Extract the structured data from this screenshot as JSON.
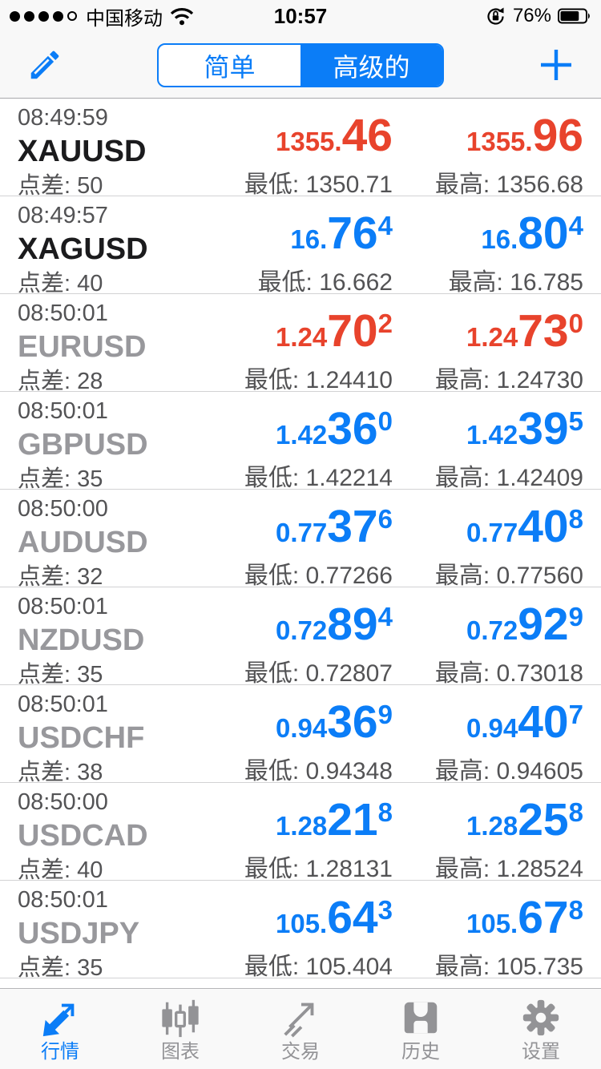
{
  "status_bar": {
    "carrier": "中国移动",
    "time": "10:57",
    "battery_percent": "76%",
    "battery_level": 76,
    "signal_dots_filled": 4,
    "signal_dots_total": 5,
    "icons": [
      "signal-dots-icon",
      "wifi-icon",
      "orientation-lock-icon",
      "battery-icon"
    ]
  },
  "header": {
    "edit_icon": "pencil-icon",
    "add_icon": "plus-icon",
    "segments": {
      "items": [
        {
          "label": "简单",
          "active": false
        },
        {
          "label": "高级的",
          "active": true
        }
      ]
    }
  },
  "quotes": [
    {
      "time": "08:49:59",
      "symbol": "XAUUSD",
      "symbol_muted": false,
      "trend": "down",
      "spread": "点差: 50",
      "bid": {
        "small": "1355.",
        "big": "46",
        "sup": ""
      },
      "ask": {
        "small": "1355.",
        "big": "96",
        "sup": ""
      },
      "low": "最低: 1350.71",
      "high": "最高: 1356.68"
    },
    {
      "time": "08:49:57",
      "symbol": "XAGUSD",
      "symbol_muted": false,
      "trend": "up",
      "spread": "点差: 40",
      "bid": {
        "small": "16.",
        "big": "76",
        "sup": "4"
      },
      "ask": {
        "small": "16.",
        "big": "80",
        "sup": "4"
      },
      "low": "最低: 16.662",
      "high": "最高: 16.785"
    },
    {
      "time": "08:50:01",
      "symbol": "EURUSD",
      "symbol_muted": true,
      "trend": "down",
      "spread": "点差: 28",
      "bid": {
        "small": "1.24",
        "big": "70",
        "sup": "2"
      },
      "ask": {
        "small": "1.24",
        "big": "73",
        "sup": "0"
      },
      "low": "最低: 1.24410",
      "high": "最高: 1.24730"
    },
    {
      "time": "08:50:01",
      "symbol": "GBPUSD",
      "symbol_muted": true,
      "trend": "up",
      "spread": "点差: 35",
      "bid": {
        "small": "1.42",
        "big": "36",
        "sup": "0"
      },
      "ask": {
        "small": "1.42",
        "big": "39",
        "sup": "5"
      },
      "low": "最低: 1.42214",
      "high": "最高: 1.42409"
    },
    {
      "time": "08:50:00",
      "symbol": "AUDUSD",
      "symbol_muted": true,
      "trend": "up",
      "spread": "点差: 32",
      "bid": {
        "small": "0.77",
        "big": "37",
        "sup": "6"
      },
      "ask": {
        "small": "0.77",
        "big": "40",
        "sup": "8"
      },
      "low": "最低: 0.77266",
      "high": "最高: 0.77560"
    },
    {
      "time": "08:50:01",
      "symbol": "NZDUSD",
      "symbol_muted": true,
      "trend": "up",
      "spread": "点差: 35",
      "bid": {
        "small": "0.72",
        "big": "89",
        "sup": "4"
      },
      "ask": {
        "small": "0.72",
        "big": "92",
        "sup": "9"
      },
      "low": "最低: 0.72807",
      "high": "最高: 0.73018"
    },
    {
      "time": "08:50:01",
      "symbol": "USDCHF",
      "symbol_muted": true,
      "trend": "up",
      "spread": "点差: 38",
      "bid": {
        "small": "0.94",
        "big": "36",
        "sup": "9"
      },
      "ask": {
        "small": "0.94",
        "big": "40",
        "sup": "7"
      },
      "low": "最低: 0.94348",
      "high": "最高: 0.94605"
    },
    {
      "time": "08:50:00",
      "symbol": "USDCAD",
      "symbol_muted": true,
      "trend": "up",
      "spread": "点差: 40",
      "bid": {
        "small": "1.28",
        "big": "21",
        "sup": "8"
      },
      "ask": {
        "small": "1.28",
        "big": "25",
        "sup": "8"
      },
      "low": "最低: 1.28131",
      "high": "最高: 1.28524"
    },
    {
      "time": "08:50:01",
      "symbol": "USDJPY",
      "symbol_muted": true,
      "trend": "up",
      "spread": "点差: 35",
      "bid": {
        "small": "105.",
        "big": "64",
        "sup": "3"
      },
      "ask": {
        "small": "105.",
        "big": "67",
        "sup": "8"
      },
      "low": "最低: 105.404",
      "high": "最高: 105.735"
    }
  ],
  "tab_bar": {
    "items": [
      {
        "label": "行情",
        "icon": "trend-arrows-icon",
        "active": true
      },
      {
        "label": "图表",
        "icon": "candlestick-chart-icon",
        "active": false
      },
      {
        "label": "交易",
        "icon": "trade-arrow-icon",
        "active": false
      },
      {
        "label": "历史",
        "icon": "history-tray-icon",
        "active": false
      },
      {
        "label": "设置",
        "icon": "settings-gear-icon",
        "active": false
      }
    ]
  },
  "colors": {
    "accent_blue": "#0b7df7",
    "price_up_blue": "#0b7df7",
    "price_down_red": "#e8432c",
    "muted_gray": "#98989c"
  }
}
